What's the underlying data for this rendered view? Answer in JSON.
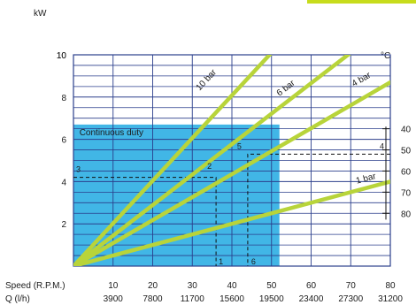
{
  "chart_data": {
    "type": "line",
    "y_unit": "kW",
    "x_rows": [
      {
        "label": "Speed (R.P.M.)",
        "values": [
          "10",
          "20",
          "30",
          "40",
          "50",
          "60",
          "70",
          "80"
        ]
      },
      {
        "label": "Q (l/h)",
        "values": [
          "3900",
          "7800",
          "11700",
          "15600",
          "19500",
          "23400",
          "27300",
          "31200"
        ]
      }
    ],
    "x": [
      0,
      80
    ],
    "ylim": [
      0,
      10
    ],
    "xlim": [
      0,
      80
    ],
    "y_ticks": [
      "2",
      "4",
      "6",
      "8",
      "10"
    ],
    "grid": true,
    "series": [
      {
        "name": "10 bar",
        "points": [
          [
            0,
            0
          ],
          [
            50,
            10.1
          ]
        ]
      },
      {
        "name": "6 bar",
        "points": [
          [
            0,
            0
          ],
          [
            70,
            10.1
          ]
        ]
      },
      {
        "name": "4 bar",
        "points": [
          [
            0,
            0
          ],
          [
            80,
            8.7
          ]
        ]
      },
      {
        "name": "1 bar",
        "points": [
          [
            0,
            0
          ],
          [
            80,
            4.0
          ]
        ]
      }
    ],
    "region": {
      "label": "Continuous duty",
      "x_end": 52,
      "y_end": 6.7
    },
    "annotations": [
      {
        "label": "1",
        "x": 36,
        "y": 4.2
      },
      {
        "label": "2",
        "x": 36,
        "y": 4.2
      },
      {
        "label": "3",
        "x": 0,
        "y": 4.2
      },
      {
        "label": "4",
        "x": 80,
        "y": 5.3
      },
      {
        "label": "5",
        "x": 44,
        "y": 5.3
      },
      {
        "label": "6",
        "x": 44,
        "y": 0
      }
    ],
    "temp_scale": {
      "unit": "°C",
      "ticks": [
        {
          "label": "40",
          "y": 6.5
        },
        {
          "label": "50",
          "y": 5.5
        },
        {
          "label": "60",
          "y": 4.5
        },
        {
          "label": "70",
          "y": 3.5
        },
        {
          "label": "80",
          "y": 2.5
        }
      ]
    },
    "colors": {
      "grid": "#2b3f8c",
      "region": "#41b6e6",
      "lines": "#b8d43a",
      "accent": "#c7dc1c"
    }
  }
}
